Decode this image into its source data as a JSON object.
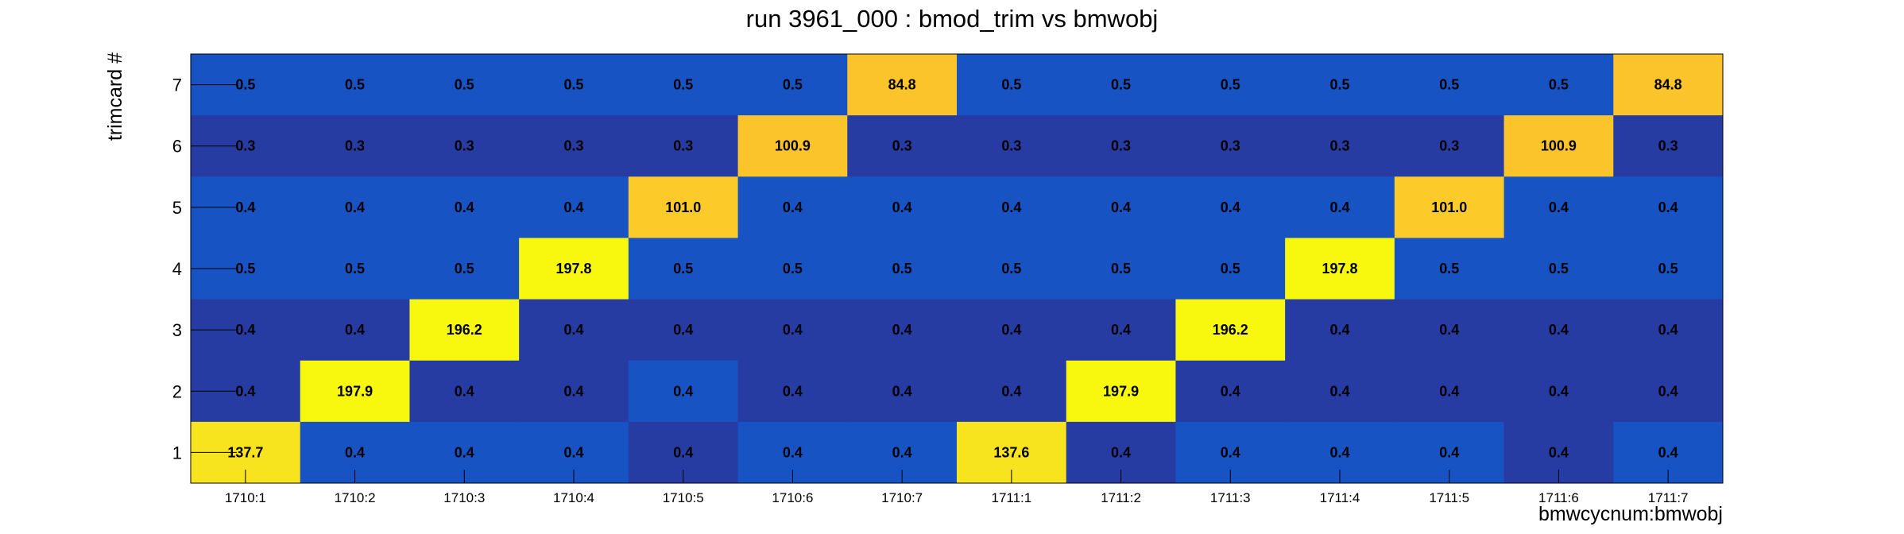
{
  "chart_data": {
    "type": "heatmap",
    "title": "run 3961_000 : bmod_trim vs bmwobj",
    "xlabel": "bmwcycnum:bmwobj",
    "ylabel": "trimcard #",
    "x_categories": [
      "1710:1",
      "1710:2",
      "1710:3",
      "1710:4",
      "1710:5",
      "1710:6",
      "1710:7",
      "1711:1",
      "1711:2",
      "1711:3",
      "1711:4",
      "1711:5",
      "1711:6",
      "1711:7"
    ],
    "y_categories": [
      "1",
      "2",
      "3",
      "4",
      "5",
      "6",
      "7"
    ],
    "rows": [
      {
        "y": "7",
        "values": [
          0.5,
          0.5,
          0.5,
          0.5,
          0.5,
          0.5,
          84.8,
          0.5,
          0.5,
          0.5,
          0.5,
          0.5,
          0.5,
          84.8
        ],
        "labels": [
          "0.5",
          "0.5",
          "0.5",
          "0.5",
          "0.5",
          "0.5",
          "84.8",
          "0.5",
          "0.5",
          "0.5",
          "0.5",
          "0.5",
          "0.5",
          "84.8"
        ]
      },
      {
        "y": "6",
        "values": [
          0.3,
          0.3,
          0.3,
          0.3,
          0.3,
          100.9,
          0.3,
          0.3,
          0.3,
          0.3,
          0.3,
          0.3,
          100.9,
          0.3
        ],
        "labels": [
          "0.3",
          "0.3",
          "0.3",
          "0.3",
          "0.3",
          "100.9",
          "0.3",
          "0.3",
          "0.3",
          "0.3",
          "0.3",
          "0.3",
          "100.9",
          "0.3"
        ]
      },
      {
        "y": "5",
        "values": [
          0.4,
          0.4,
          0.4,
          0.4,
          101.0,
          0.4,
          0.4,
          0.4,
          0.4,
          0.4,
          0.4,
          101.0,
          0.4,
          0.4
        ],
        "labels": [
          "0.4",
          "0.4",
          "0.4",
          "0.4",
          "101.0",
          "0.4",
          "0.4",
          "0.4",
          "0.4",
          "0.4",
          "0.4",
          "101.0",
          "0.4",
          "0.4"
        ]
      },
      {
        "y": "4",
        "values": [
          0.5,
          0.5,
          0.5,
          197.8,
          0.5,
          0.5,
          0.5,
          0.5,
          0.5,
          0.5,
          197.8,
          0.5,
          0.5,
          0.5
        ],
        "labels": [
          "0.5",
          "0.5",
          "0.5",
          "197.8",
          "0.5",
          "0.5",
          "0.5",
          "0.5",
          "0.5",
          "0.5",
          "197.8",
          "0.5",
          "0.5",
          "0.5"
        ]
      },
      {
        "y": "3",
        "values": [
          0.4,
          0.4,
          196.2,
          0.4,
          0.4,
          0.4,
          0.4,
          0.4,
          0.4,
          196.2,
          0.4,
          0.4,
          0.4,
          0.4
        ],
        "labels": [
          "0.4",
          "0.4",
          "196.2",
          "0.4",
          "0.4",
          "0.4",
          "0.4",
          "0.4",
          "0.4",
          "196.2",
          "0.4",
          "0.4",
          "0.4",
          "0.4"
        ]
      },
      {
        "y": "2",
        "values": [
          0.4,
          197.9,
          0.4,
          0.4,
          0.4,
          0.4,
          0.4,
          0.4,
          197.9,
          0.4,
          0.4,
          0.4,
          0.4,
          0.4
        ],
        "labels": [
          "0.4",
          "197.9",
          "0.4",
          "0.4",
          "0.4",
          "0.4",
          "0.4",
          "0.4",
          "197.9",
          "0.4",
          "0.4",
          "0.4",
          "0.4",
          "0.4"
        ]
      },
      {
        "y": "1",
        "values": [
          137.7,
          0.4,
          0.4,
          0.4,
          0.4,
          0.4,
          0.4,
          137.6,
          0.4,
          0.4,
          0.4,
          0.4,
          0.4,
          0.4
        ],
        "labels": [
          "137.7",
          "0.4",
          "0.4",
          "0.4",
          "0.4",
          "0.4",
          "0.4",
          "137.6",
          "0.4",
          "0.4",
          "0.4",
          "0.4",
          "0.4",
          "0.4"
        ]
      }
    ],
    "cell_colors": [
      [
        "#1853c4",
        "#1853c4",
        "#1853c4",
        "#1853c4",
        "#1853c4",
        "#1853c4",
        "#fcc42b",
        "#1853c4",
        "#1853c4",
        "#1853c4",
        "#1853c4",
        "#1853c4",
        "#1853c4",
        "#fcc42b"
      ],
      [
        "#263ca3",
        "#263ca3",
        "#263ca3",
        "#263ca3",
        "#263ca3",
        "#fcc42b",
        "#263ca3",
        "#263ca3",
        "#263ca3",
        "#263ca3",
        "#263ca3",
        "#263ca3",
        "#fcc42b",
        "#263ca3"
      ],
      [
        "#1853c4",
        "#1853c4",
        "#1853c4",
        "#1853c4",
        "#fccb2a",
        "#1853c4",
        "#1853c4",
        "#1853c4",
        "#1853c4",
        "#1853c4",
        "#1853c4",
        "#fccb2a",
        "#1853c4",
        "#1853c4"
      ],
      [
        "#1853c4",
        "#1853c4",
        "#1853c4",
        "#f8f80f",
        "#1853c4",
        "#1853c4",
        "#1853c4",
        "#1853c4",
        "#1853c4",
        "#1853c4",
        "#f8f80f",
        "#1853c4",
        "#1853c4",
        "#1853c4"
      ],
      [
        "#263ca3",
        "#263ca3",
        "#f8f80f",
        "#263ca3",
        "#263ca3",
        "#263ca3",
        "#263ca3",
        "#263ca3",
        "#263ca3",
        "#f8f80f",
        "#263ca3",
        "#263ca3",
        "#263ca3",
        "#263ca3"
      ],
      [
        "#263ca3",
        "#f8f80f",
        "#263ca3",
        "#263ca3",
        "#1853c4",
        "#263ca3",
        "#263ca3",
        "#263ca3",
        "#f8f80f",
        "#263ca3",
        "#263ca3",
        "#263ca3",
        "#263ca3",
        "#263ca3"
      ],
      [
        "#f8e31f",
        "#1853c4",
        "#1853c4",
        "#1853c4",
        "#263ca3",
        "#1853c4",
        "#1853c4",
        "#f8e31f",
        "#263ca3",
        "#1853c4",
        "#1853c4",
        "#1853c4",
        "#263ca3",
        "#1853c4"
      ]
    ],
    "grid": false,
    "legend": "none"
  }
}
